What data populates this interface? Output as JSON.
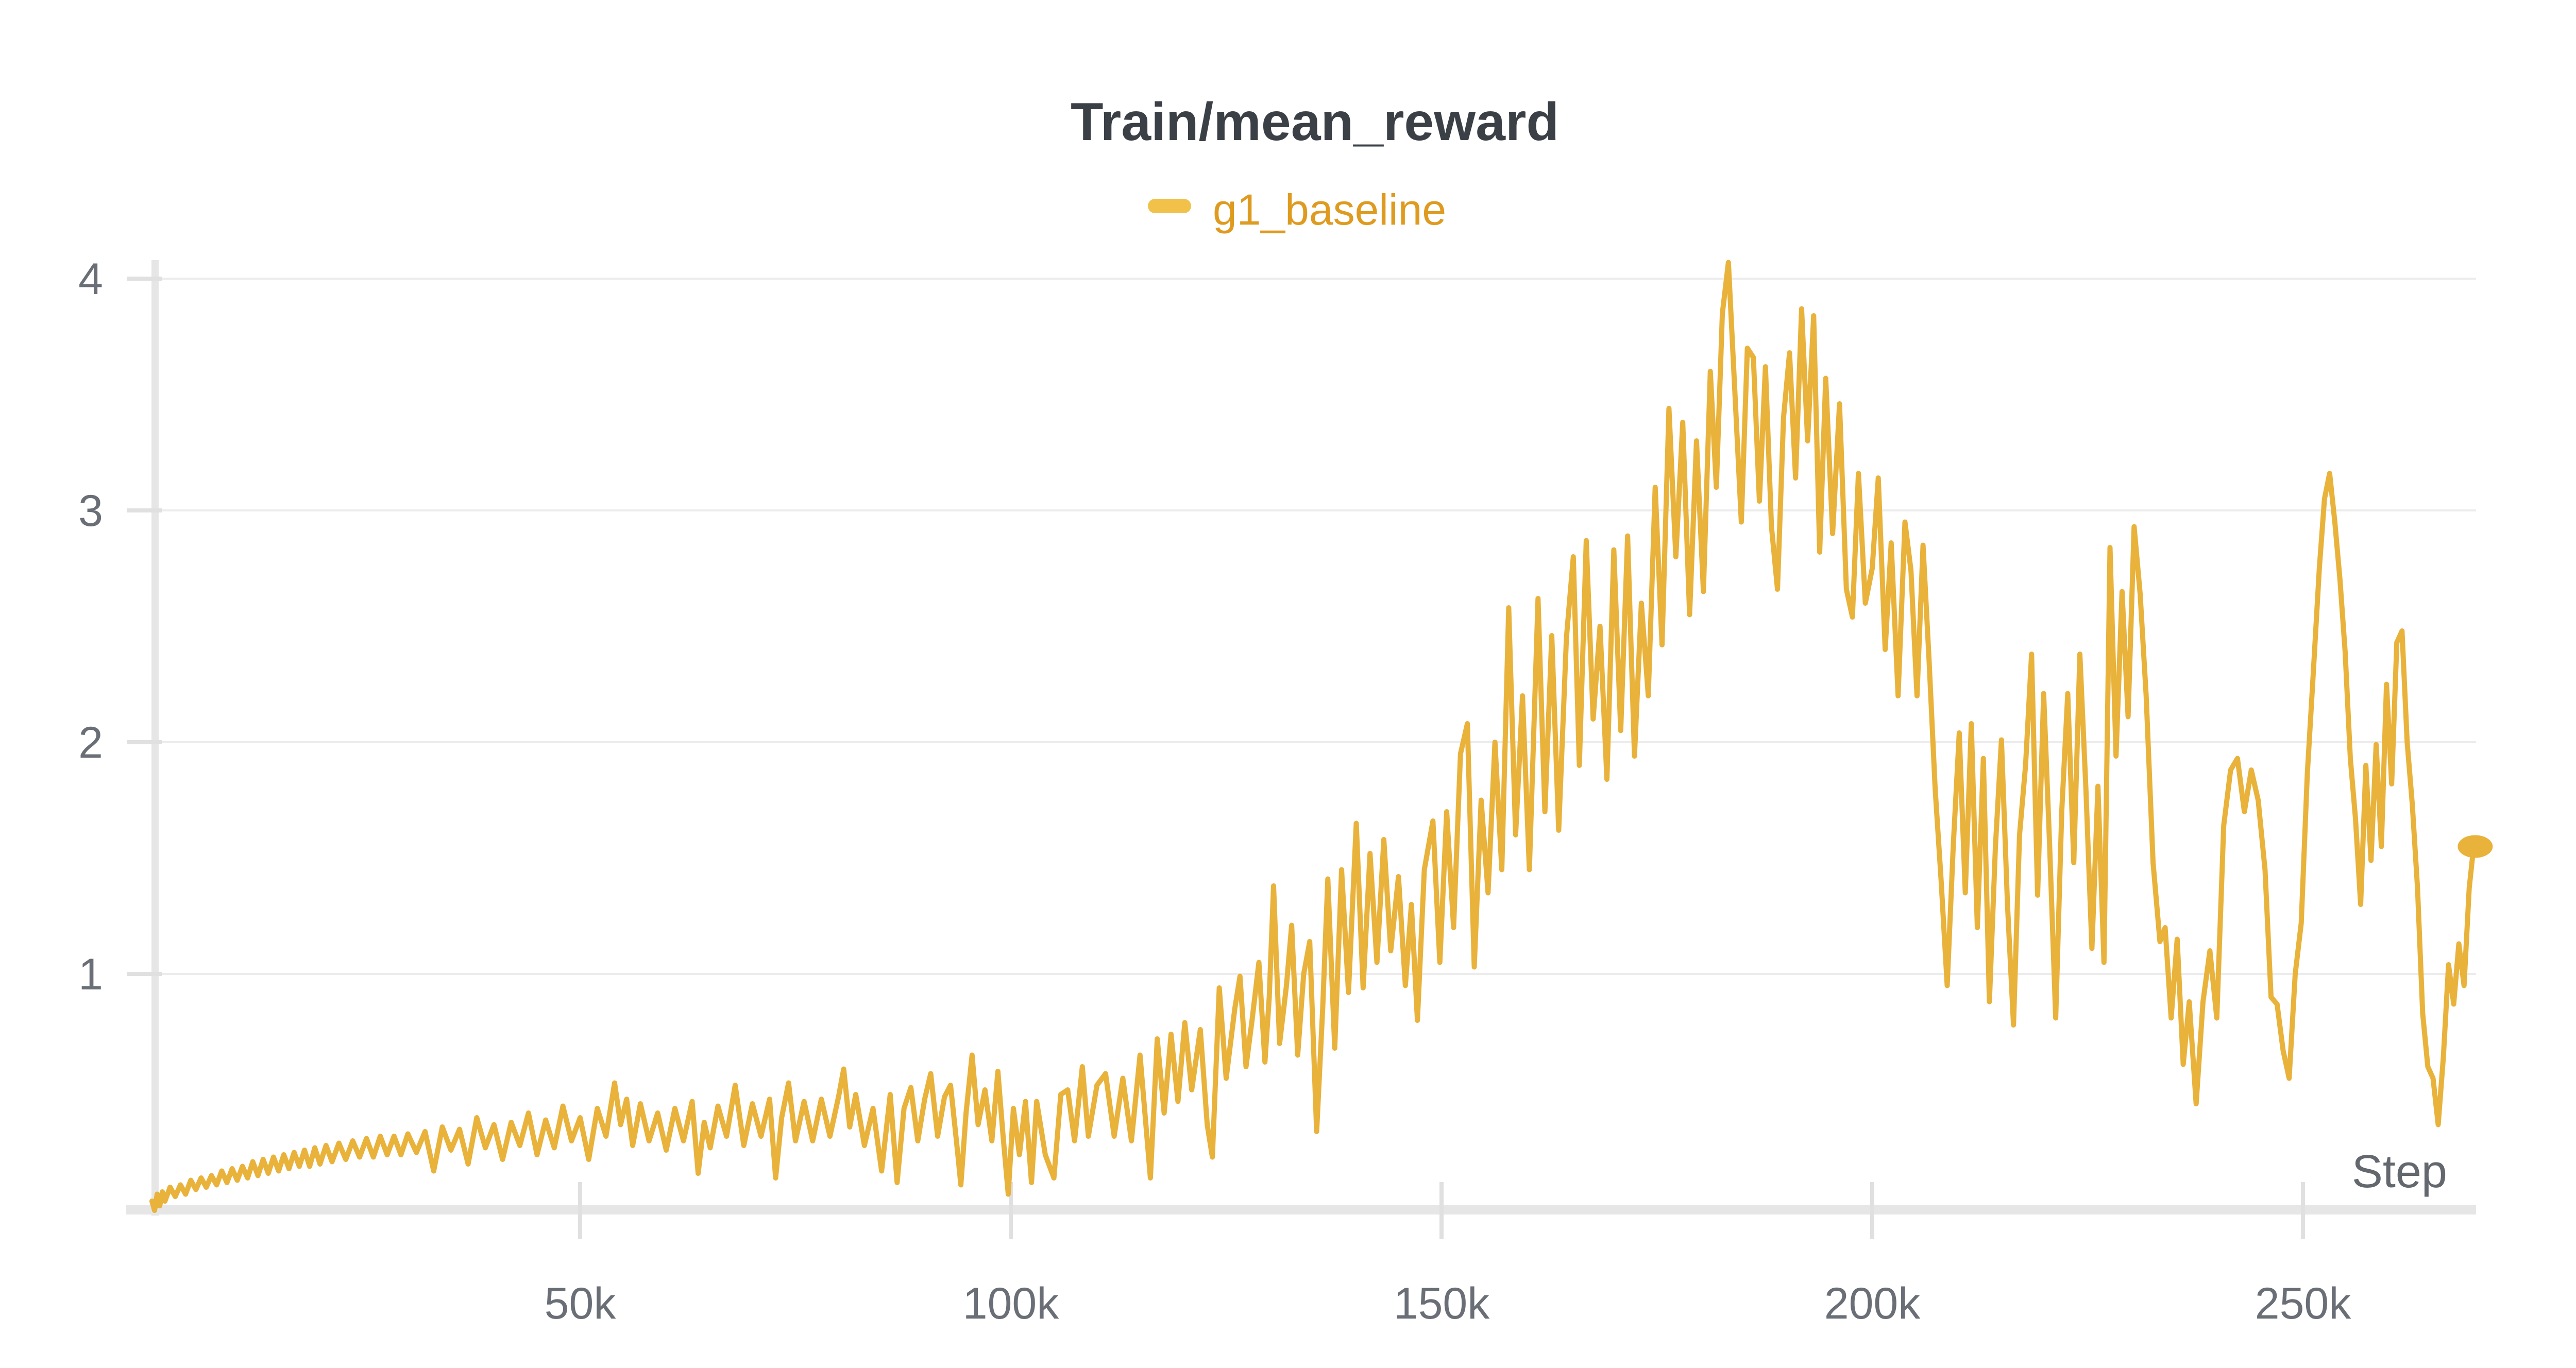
{
  "panel": {
    "title": "Train/mean_reward",
    "background": "#ffffff"
  },
  "legend": {
    "items": [
      {
        "label": "g1_baseline",
        "swatch_color": "#F1C14A",
        "text_color": "#DE9B20"
      }
    ]
  },
  "axes": {
    "x_label": "Step",
    "x_ticks": [
      {
        "k": 50,
        "label": "50k"
      },
      {
        "k": 100,
        "label": "100k"
      },
      {
        "k": 150,
        "label": "150k"
      },
      {
        "k": 200,
        "label": "200k"
      },
      {
        "k": 250,
        "label": "250k"
      }
    ],
    "y_ticks": [
      {
        "value": 4,
        "label": "4"
      },
      {
        "value": 3,
        "label": "3"
      },
      {
        "value": 2,
        "label": "2"
      },
      {
        "value": 1,
        "label": "1"
      }
    ]
  },
  "colors": {
    "line": "#E8B23B",
    "gridline": "#ECECEC",
    "axis_line": "#E6E6E6",
    "tick_mark": "#E0E0E0",
    "title": "#3B4046",
    "tick_label": "#6A6E76",
    "axis_title": "#63676E"
  },
  "chart_data": {
    "type": "line",
    "title": "Train/mean_reward",
    "xlabel": "Step",
    "ylabel": "",
    "x_units": "steps (thousands)",
    "xlim_k": [
      0,
      270.4
    ],
    "ylim": [
      0,
      4.3
    ],
    "grid": "horizontal",
    "legend_position": "top-center",
    "x_tick_values_k": [
      50,
      100,
      150,
      200,
      250
    ],
    "x_tick_labels": [
      "50k",
      "100k",
      "150k",
      "200k",
      "250k"
    ],
    "y_tick_values": [
      1,
      2,
      3,
      4
    ],
    "end_marker": {
      "x_k": 270,
      "y": 1.55
    },
    "series": [
      {
        "name": "g1_baseline",
        "color": "#E8B23B",
        "x_k": [
          0.3,
          0.6,
          0.9,
          1.2,
          1.5,
          1.8,
          2.4,
          3,
          3.6,
          4.2,
          4.8,
          5.4,
          6,
          6.6,
          7.2,
          7.8,
          8.4,
          9,
          9.6,
          10.2,
          10.8,
          11.4,
          12,
          12.6,
          13.2,
          13.8,
          14.4,
          15,
          15.6,
          16.2,
          16.8,
          17.4,
          18,
          18.6,
          19.2,
          19.8,
          20.5,
          21.2,
          22,
          22.8,
          23.6,
          24.4,
          25.2,
          26,
          26.8,
          27.6,
          28.4,
          29.2,
          30,
          31,
          32,
          33,
          34,
          35,
          36,
          37,
          38,
          39,
          40,
          41,
          42,
          43,
          44,
          45,
          46,
          47,
          48,
          49,
          50,
          51,
          52,
          53,
          54,
          54.7,
          55.4,
          56.1,
          57,
          58,
          59,
          60,
          61,
          62,
          63,
          63.7,
          64.4,
          65.1,
          66,
          67,
          68,
          69,
          70,
          71,
          72,
          72.7,
          73.4,
          74.2,
          75,
          76,
          77,
          78,
          79,
          80,
          80.6,
          81.3,
          82,
          83,
          84,
          85,
          86,
          86.8,
          87.6,
          88.4,
          89.2,
          90,
          90.7,
          91.5,
          92.3,
          93,
          93.8,
          94.2,
          94.8,
          95.5,
          96.2,
          97,
          97.8,
          98.5,
          99.1,
          99.7,
          100.3,
          101,
          101.7,
          102.4,
          103,
          104,
          105,
          105.8,
          106.6,
          107.4,
          108.3,
          109,
          110,
          111,
          112,
          113,
          114,
          115,
          116.2,
          117,
          117.8,
          118.6,
          119.4,
          120.2,
          121,
          122,
          122.8,
          123.4,
          124.2,
          125,
          126,
          126.6,
          127.3,
          128,
          128.8,
          129.5,
          130,
          130.5,
          131.2,
          132,
          132.6,
          133.3,
          134,
          134.7,
          135.5,
          136.2,
          136.8,
          137.6,
          138.4,
          139.2,
          140.1,
          140.9,
          141.7,
          142.5,
          143.3,
          144.1,
          145,
          145.8,
          146.5,
          147.2,
          148,
          149,
          149.8,
          150.6,
          151.4,
          152.2,
          153,
          153.8,
          154.6,
          155.4,
          156.2,
          157,
          157.8,
          158.6,
          159.4,
          160.2,
          161.2,
          162,
          162.8,
          163.6,
          164.5,
          165.3,
          166,
          166.8,
          167.6,
          168.4,
          169.2,
          170,
          170.8,
          171.6,
          172.4,
          173.2,
          174,
          174.8,
          175.6,
          176.4,
          177.2,
          178,
          178.8,
          179.6,
          180.4,
          181.2,
          181.9,
          182.6,
          183.3,
          184,
          184.8,
          185.5,
          186.2,
          186.9,
          187.6,
          188.3,
          189,
          189.7,
          190.4,
          191.1,
          191.8,
          192.5,
          193.2,
          193.9,
          194.6,
          195.4,
          196.2,
          197,
          197.7,
          198.4,
          199.2,
          200,
          200.7,
          201.5,
          202.2,
          203,
          203.8,
          204.5,
          205.2,
          205.9,
          206.6,
          207.3,
          208,
          208.7,
          209.4,
          210.1,
          210.8,
          211.5,
          212.2,
          212.9,
          213.6,
          214.3,
          215,
          215.7,
          216.4,
          217.1,
          217.8,
          218.5,
          219.2,
          219.9,
          220.6,
          221.3,
          222,
          222.7,
          223.4,
          224.1,
          224.8,
          225.5,
          226.2,
          226.9,
          227.6,
          228.3,
          229,
          229.7,
          230.4,
          231.1,
          231.8,
          232.6,
          233.4,
          234,
          234.7,
          235.4,
          236.1,
          236.8,
          237.6,
          238.4,
          239.2,
          240,
          240.8,
          241.6,
          242.4,
          243.2,
          244,
          244.8,
          245.6,
          246.3,
          247,
          247.7,
          248.4,
          249.1,
          249.8,
          250.5,
          251.2,
          251.9,
          252.5,
          253.1,
          253.7,
          254.3,
          254.9,
          255.5,
          256.1,
          256.7,
          257.3,
          257.9,
          258.5,
          259.1,
          259.7,
          260.3,
          260.9,
          261.5,
          262.1,
          262.7,
          263.3,
          263.9,
          264.5,
          265.1,
          265.7,
          266.3,
          266.9,
          267.5,
          268.1,
          268.7,
          269.3,
          269.7,
          270
        ],
        "y": [
          0.02,
          -0.02,
          0.05,
          0,
          0.06,
          0.02,
          0.08,
          0.04,
          0.09,
          0.05,
          0.11,
          0.07,
          0.12,
          0.08,
          0.13,
          0.09,
          0.15,
          0.1,
          0.16,
          0.11,
          0.17,
          0.12,
          0.19,
          0.13,
          0.2,
          0.14,
          0.21,
          0.15,
          0.22,
          0.16,
          0.23,
          0.17,
          0.24,
          0.17,
          0.25,
          0.18,
          0.26,
          0.19,
          0.27,
          0.2,
          0.28,
          0.21,
          0.29,
          0.21,
          0.3,
          0.22,
          0.3,
          0.22,
          0.31,
          0.23,
          0.32,
          0.15,
          0.34,
          0.24,
          0.33,
          0.18,
          0.38,
          0.25,
          0.35,
          0.2,
          0.36,
          0.26,
          0.4,
          0.22,
          0.37,
          0.25,
          0.43,
          0.28,
          0.38,
          0.2,
          0.42,
          0.3,
          0.53,
          0.35,
          0.46,
          0.26,
          0.44,
          0.28,
          0.4,
          0.24,
          0.42,
          0.28,
          0.45,
          0.14,
          0.36,
          0.25,
          0.43,
          0.3,
          0.52,
          0.26,
          0.44,
          0.3,
          0.46,
          0.12,
          0.38,
          0.53,
          0.28,
          0.45,
          0.28,
          0.46,
          0.3,
          0.47,
          0.59,
          0.34,
          0.48,
          0.26,
          0.42,
          0.15,
          0.48,
          0.1,
          0.42,
          0.51,
          0.28,
          0.46,
          0.57,
          0.3,
          0.47,
          0.52,
          0.24,
          0.09,
          0.4,
          0.65,
          0.35,
          0.5,
          0.28,
          0.58,
          0.3,
          0.05,
          0.42,
          0.22,
          0.45,
          0.1,
          0.45,
          0.22,
          0.12,
          0.48,
          0.5,
          0.28,
          0.6,
          0.3,
          0.52,
          0.57,
          0.3,
          0.55,
          0.28,
          0.65,
          0.12,
          0.72,
          0.4,
          0.74,
          0.45,
          0.79,
          0.5,
          0.76,
          0.35,
          0.21,
          0.94,
          0.55,
          0.85,
          0.99,
          0.6,
          0.8,
          1.05,
          0.62,
          0.9,
          1.38,
          0.7,
          0.95,
          1.21,
          0.65,
          1,
          1.14,
          0.32,
          0.85,
          1.41,
          0.68,
          1.45,
          0.92,
          1.65,
          0.94,
          1.52,
          1.05,
          1.58,
          1.1,
          1.42,
          0.95,
          1.3,
          0.8,
          1.45,
          1.66,
          1.05,
          1.7,
          1.2,
          1.95,
          2.08,
          1.03,
          1.75,
          1.35,
          2,
          1.45,
          2.58,
          1.6,
          2.2,
          1.45,
          2.62,
          1.7,
          2.46,
          1.62,
          2.45,
          2.8,
          1.9,
          2.87,
          2.1,
          2.5,
          1.84,
          2.83,
          2.05,
          2.89,
          1.94,
          2.6,
          2.2,
          3.1,
          2.42,
          3.44,
          2.8,
          3.38,
          2.55,
          3.3,
          2.65,
          3.6,
          3.1,
          3.85,
          4.07,
          3.55,
          2.95,
          3.7,
          3.66,
          3.04,
          3.62,
          2.93,
          2.66,
          3.4,
          3.68,
          3.14,
          3.87,
          3.3,
          3.84,
          2.82,
          3.57,
          2.9,
          3.46,
          2.66,
          2.54,
          3.16,
          2.6,
          2.75,
          3.14,
          2.4,
          2.86,
          2.2,
          2.95,
          2.74,
          2.2,
          2.85,
          2.35,
          1.8,
          1.4,
          0.95,
          1.55,
          2.04,
          1.35,
          2.08,
          1.2,
          1.93,
          0.88,
          1.55,
          2.01,
          1.3,
          0.78,
          1.6,
          1.9,
          2.38,
          1.34,
          2.21,
          1.55,
          0.81,
          1.7,
          2.21,
          1.48,
          2.38,
          1.8,
          1.11,
          1.81,
          1.05,
          2.84,
          1.94,
          2.65,
          2.11,
          2.93,
          2.64,
          2.2,
          1.48,
          1.14,
          1.2,
          0.81,
          1.15,
          0.61,
          0.88,
          0.44,
          0.88,
          1.1,
          0.81,
          1.64,
          1.88,
          1.93,
          1.7,
          1.88,
          1.75,
          1.45,
          0.9,
          0.87,
          0.67,
          0.55,
          1,
          1.22,
          1.86,
          2.3,
          2.75,
          3.05,
          3.16,
          2.95,
          2.7,
          2.39,
          1.93,
          1.67,
          1.3,
          1.9,
          1.49,
          1.99,
          1.55,
          2.25,
          1.82,
          2.43,
          2.48,
          2,
          1.73,
          1.37,
          0.83,
          0.6,
          0.55,
          0.35,
          0.64,
          1.04,
          0.87,
          1.13,
          0.95,
          1.37,
          1.51,
          1.55
        ]
      }
    ]
  }
}
